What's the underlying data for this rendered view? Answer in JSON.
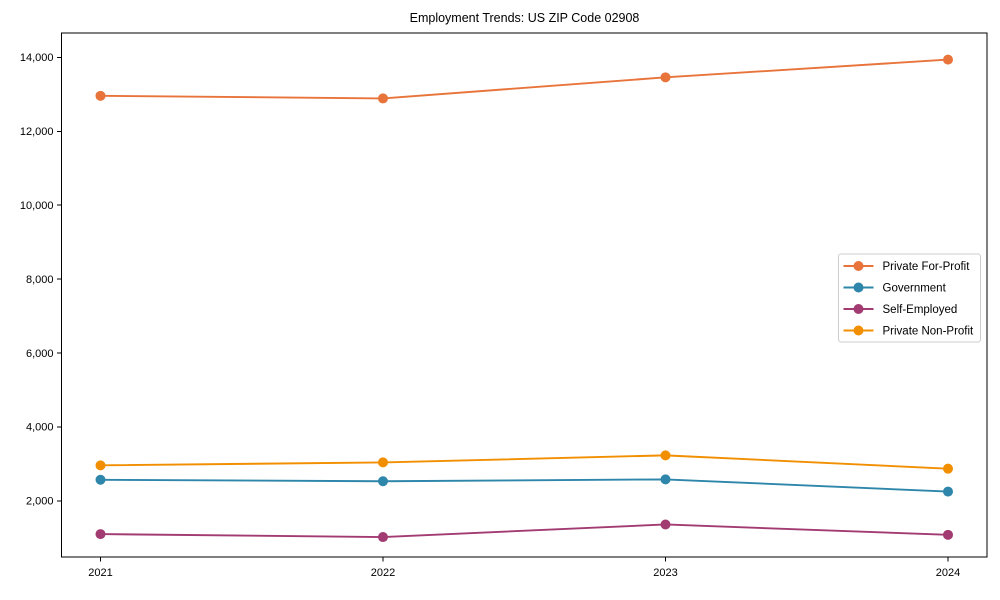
{
  "chart_data": {
    "type": "line",
    "title": "Employment Trends: US ZIP Code 02908",
    "xlabel": "",
    "ylabel": "",
    "categories": [
      "2021",
      "2022",
      "2023",
      "2024"
    ],
    "series": [
      {
        "name": "Private For-Profit",
        "color": "#E8743B",
        "values": [
          12960,
          12890,
          13460,
          13940
        ]
      },
      {
        "name": "Government",
        "color": "#2E86AB",
        "values": [
          2570,
          2530,
          2580,
          2250
        ]
      },
      {
        "name": "Self-Employed",
        "color": "#A23B72",
        "values": [
          1100,
          1020,
          1360,
          1080
        ]
      },
      {
        "name": "Private Non-Profit",
        "color": "#F18F01",
        "values": [
          2960,
          3040,
          3230,
          2870
        ]
      }
    ],
    "ylim": [
      480,
      14660
    ],
    "yticks": [
      2000,
      4000,
      6000,
      8000,
      10000,
      12000,
      14000
    ],
    "ytick_labels": [
      "2,000",
      "4,000",
      "6,000",
      "8,000",
      "10,000",
      "12,000",
      "14,000"
    ],
    "grid": false,
    "legend_position": "center-right",
    "marker": "circle",
    "spine_color": "#000000",
    "legend_border_color": "#cccccc",
    "background_color": "#ffffff"
  }
}
